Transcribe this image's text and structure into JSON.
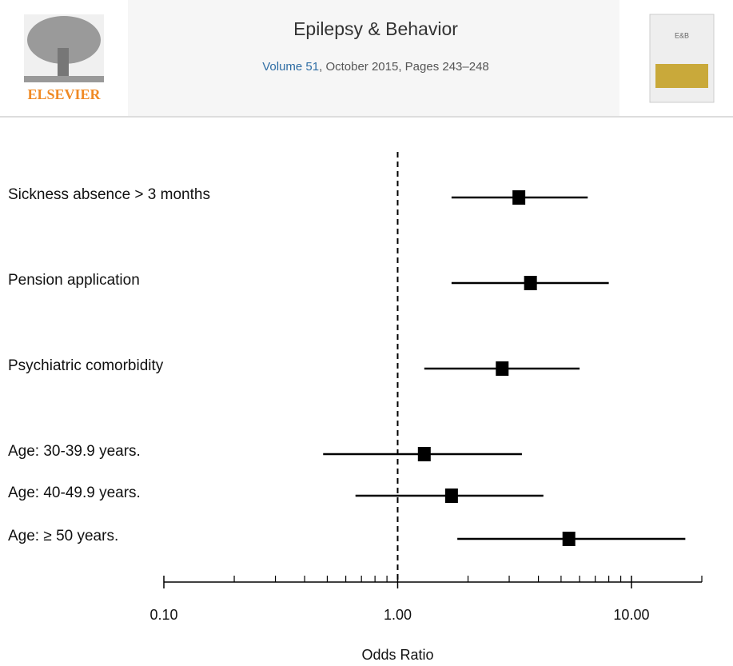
{
  "header": {
    "publisher": "ELSEVIER",
    "journal": "Epilepsy & Behavior",
    "volume": "Volume 51",
    "citation": ", October 2015, Pages 243–248"
  },
  "chart_data": {
    "type": "forest",
    "categories": [
      "Sickness absence > 3 months",
      "Pension application",
      "Psychiatric comorbidity",
      "Age: 30-39.9 years.",
      "Age: 40-49.9 years.",
      "Age: ≥ 50 years."
    ],
    "values": [
      3.3,
      3.7,
      2.8,
      1.3,
      1.7,
      5.4
    ],
    "lower": [
      1.7,
      1.7,
      1.3,
      0.48,
      0.66,
      1.8
    ],
    "upper": [
      6.5,
      8.0,
      6.0,
      3.4,
      4.2,
      17
    ],
    "color": "#000000",
    "xlabel": "Odds Ratio",
    "xscale": "log",
    "xlim": [
      0.1,
      20
    ],
    "xticks": [
      {
        "value": 0.1,
        "label": "0.10"
      },
      {
        "value": 1,
        "label": "1.00"
      },
      {
        "value": 10,
        "label": "10.00"
      }
    ],
    "minor_xticks": [
      0.2,
      0.3,
      0.4,
      0.5,
      0.6,
      0.7,
      0.8,
      0.9,
      2,
      3,
      4,
      5,
      6,
      7,
      8,
      9,
      20
    ],
    "reference_line": 1
  }
}
